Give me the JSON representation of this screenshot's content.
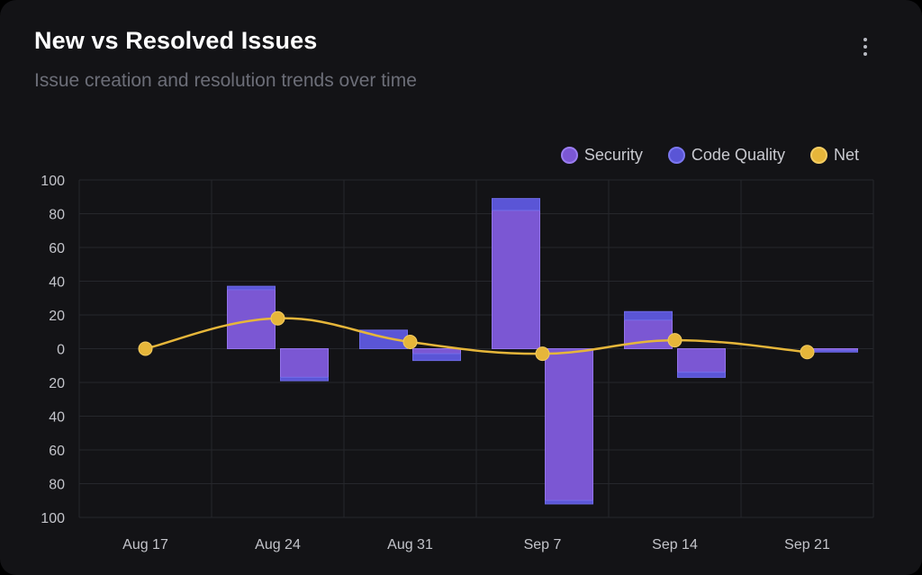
{
  "header": {
    "title": "New vs Resolved Issues",
    "subtitle": "Issue creation and resolution trends over time",
    "menu_icon": "more-vertical-icon"
  },
  "colors": {
    "background": "#131316",
    "security": "#7b57d3",
    "code_quality": "#5a55d6",
    "net": "#e6b63a",
    "grid": "#26272c"
  },
  "chart_data": {
    "type": "bar",
    "stacked": true,
    "title": "New vs Resolved Issues",
    "subtitle": "Issue creation and resolution trends over time",
    "x": [
      "Aug 17",
      "Aug 24",
      "Aug 31",
      "Sep 7",
      "Sep 14",
      "Sep 21"
    ],
    "ylim": [
      -100,
      100
    ],
    "yticks": [
      100,
      80,
      60,
      40,
      20,
      0,
      -20,
      -40,
      -60,
      -80,
      -100
    ],
    "ytick_labels": [
      "100",
      "80",
      "60",
      "40",
      "20",
      "0",
      "20",
      "40",
      "60",
      "80",
      "100"
    ],
    "grid": true,
    "legend": "top-right",
    "series": [
      {
        "name": "Security",
        "type": "bar",
        "stack_order": 0,
        "new": [
          0,
          35,
          0,
          82,
          17,
          0
        ],
        "resolved": [
          0,
          17,
          3,
          90,
          14,
          1
        ]
      },
      {
        "name": "Code Quality",
        "type": "bar",
        "stack_order": 1,
        "new": [
          0,
          2,
          11,
          7,
          5,
          0
        ],
        "resolved": [
          0,
          2,
          4,
          2,
          3,
          1
        ]
      },
      {
        "name": "Net",
        "type": "line",
        "values": [
          0,
          18,
          4,
          -3,
          5,
          -2
        ]
      }
    ]
  }
}
